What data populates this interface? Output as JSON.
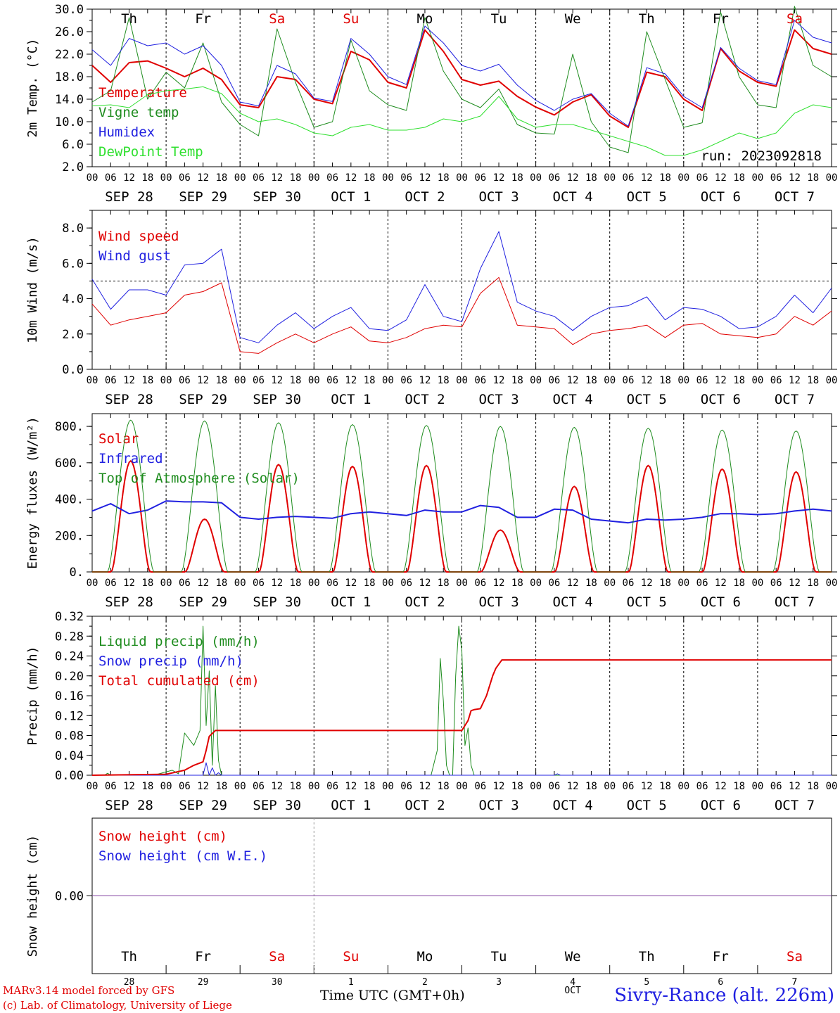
{
  "footer": {
    "credit_line1": "MARv3.14 model forced by GFS",
    "credit_line2": "(c) Lab. of Climatology, University of Liege",
    "x_title": "Time UTC (GMT+0h)",
    "station": "Sivry-Rance (alt. 226m)",
    "month_label": "OCT"
  },
  "colors": {
    "red": "#e00000",
    "green": "#1e8c1e",
    "blue": "#2020e0",
    "light_green": "#30e030",
    "purple": "#8040a0",
    "axis": "#000000"
  },
  "days": [
    {
      "abbr": "Th",
      "weekend": false,
      "date_label": "SEP 28",
      "num": "28"
    },
    {
      "abbr": "Fr",
      "weekend": false,
      "date_label": "SEP 29",
      "num": "29"
    },
    {
      "abbr": "Sa",
      "weekend": true,
      "date_label": "SEP 30",
      "num": "30"
    },
    {
      "abbr": "Su",
      "weekend": true,
      "date_label": "OCT  1",
      "num": "1"
    },
    {
      "abbr": "Mo",
      "weekend": false,
      "date_label": "OCT  2",
      "num": "2"
    },
    {
      "abbr": "Tu",
      "weekend": false,
      "date_label": "OCT  3",
      "num": "3"
    },
    {
      "abbr": "We",
      "weekend": false,
      "date_label": "OCT  4",
      "num": "4"
    },
    {
      "abbr": "Th",
      "weekend": false,
      "date_label": "OCT  5",
      "num": "5"
    },
    {
      "abbr": "Fr",
      "weekend": false,
      "date_label": "OCT  6",
      "num": "6"
    },
    {
      "abbr": "Sa",
      "weekend": true,
      "date_label": "OCT  7",
      "num": "7"
    }
  ],
  "hour_ticks": [
    "00",
    "06",
    "12",
    "18"
  ],
  "chart_data": [
    {
      "type": "line",
      "ylabel": "2m Temp. (°C)",
      "ylim": [
        2,
        30
      ],
      "yticks": [
        "2.0",
        "6.0",
        "10.0",
        "14.0",
        "18.0",
        "22.0",
        "26.0",
        "30.0"
      ],
      "ytick_values": [
        2,
        6,
        10,
        14,
        18,
        22,
        26,
        30
      ],
      "annotation": "run: 2023092818",
      "x_hours": [
        0,
        6,
        12,
        18,
        24,
        30,
        36,
        42,
        48,
        54,
        60,
        66,
        72,
        78,
        84,
        90,
        96,
        102,
        108,
        114,
        120,
        126,
        132,
        138,
        144,
        150,
        156,
        162,
        168,
        174,
        180,
        186,
        192,
        198,
        204,
        210,
        216,
        222,
        228,
        234,
        240
      ],
      "series": [
        {
          "name": "Temperature",
          "color": "red",
          "width": 2,
          "values": [
            20.0,
            17.0,
            20.5,
            20.8,
            19.5,
            18.0,
            19.5,
            17.5,
            13.0,
            12.5,
            18.0,
            17.5,
            14.0,
            13.2,
            22.5,
            21.0,
            17.0,
            16.0,
            26.3,
            22.5,
            17.5,
            16.5,
            17.2,
            14.5,
            12.6,
            11.2,
            13.5,
            14.8,
            11.0,
            9.0,
            18.8,
            18.0,
            14.0,
            12.0,
            23.0,
            19.0,
            17.0,
            16.3,
            26.3,
            23.0,
            22.0
          ]
        },
        {
          "name": "Vigne temp",
          "color": "green",
          "width": 1,
          "values": [
            13.5,
            15.5,
            28.5,
            14.0,
            18.8,
            16.0,
            24.0,
            13.5,
            9.5,
            7.5,
            26.5,
            17.0,
            9.0,
            10.0,
            24.5,
            15.5,
            13.0,
            12.0,
            28.5,
            19.0,
            14.0,
            12.5,
            15.8,
            9.5,
            8.0,
            7.8,
            22.0,
            10.0,
            5.5,
            4.5,
            26.0,
            17.5,
            9.0,
            9.8,
            29.5,
            18.0,
            13.0,
            12.5,
            30.5,
            20.0,
            18.0
          ]
        },
        {
          "name": "Humidex",
          "color": "blue",
          "width": 1,
          "values": [
            22.8,
            20.0,
            24.8,
            23.5,
            24.0,
            22.0,
            23.5,
            20.0,
            13.5,
            12.8,
            20.0,
            18.5,
            14.2,
            13.6,
            24.8,
            22.0,
            18.0,
            16.6,
            27.0,
            24.0,
            20.0,
            19.0,
            20.2,
            16.5,
            13.8,
            12.0,
            14.0,
            15.0,
            11.5,
            9.2,
            19.6,
            18.5,
            14.5,
            12.5,
            23.2,
            19.5,
            17.3,
            16.6,
            28.0,
            25.0,
            24.0
          ]
        },
        {
          "name": "DewPoint Temp",
          "color": "light_green",
          "width": 1,
          "values": [
            12.8,
            13.0,
            12.5,
            14.8,
            15.5,
            15.8,
            16.2,
            15.0,
            11.5,
            10.0,
            10.5,
            9.5,
            8.0,
            7.5,
            9.0,
            9.5,
            8.5,
            8.5,
            9.0,
            10.5,
            10.0,
            11.0,
            14.5,
            10.5,
            9.0,
            9.5,
            9.5,
            8.5,
            7.5,
            6.5,
            5.5,
            4.0,
            4.0,
            5.0,
            6.5,
            8.0,
            7.0,
            8.0,
            11.5,
            13.0,
            12.5
          ]
        }
      ]
    },
    {
      "type": "line",
      "ylabel": "10m Wind (m/s)",
      "ylim": [
        0,
        9
      ],
      "yticks": [
        "0.0",
        "2.0",
        "4.0",
        "6.0",
        "8.0"
      ],
      "ytick_values": [
        0,
        2,
        4,
        6,
        8
      ],
      "reference_line": 5.0,
      "x_hours": [
        0,
        6,
        12,
        18,
        24,
        30,
        36,
        42,
        48,
        54,
        60,
        66,
        72,
        78,
        84,
        90,
        96,
        102,
        108,
        114,
        120,
        126,
        132,
        138,
        144,
        150,
        156,
        162,
        168,
        174,
        180,
        186,
        192,
        198,
        204,
        210,
        216,
        222,
        228,
        234,
        240
      ],
      "series": [
        {
          "name": "Wind speed",
          "color": "red",
          "width": 1,
          "values": [
            3.7,
            2.5,
            2.8,
            3.0,
            3.2,
            4.2,
            4.4,
            4.9,
            1.0,
            0.9,
            1.5,
            2.0,
            1.5,
            2.0,
            2.4,
            1.6,
            1.5,
            1.8,
            2.3,
            2.5,
            2.4,
            4.3,
            5.2,
            2.5,
            2.4,
            2.3,
            1.4,
            2.0,
            2.2,
            2.3,
            2.5,
            1.8,
            2.5,
            2.6,
            2.0,
            1.9,
            1.8,
            2.0,
            3.0,
            2.5,
            3.3
          ]
        },
        {
          "name": "Wind gust",
          "color": "blue",
          "width": 1,
          "values": [
            5.1,
            3.4,
            4.5,
            4.5,
            4.2,
            5.9,
            6.0,
            6.8,
            1.8,
            1.5,
            2.5,
            3.2,
            2.3,
            3.0,
            3.5,
            2.3,
            2.2,
            2.8,
            4.8,
            3.0,
            2.7,
            5.7,
            7.8,
            3.8,
            3.3,
            3.0,
            2.2,
            3.0,
            3.5,
            3.6,
            4.1,
            2.8,
            3.5,
            3.4,
            3.0,
            2.3,
            2.4,
            3.0,
            4.2,
            3.2,
            4.6
          ]
        }
      ]
    },
    {
      "type": "line",
      "ylabel": "Energy fluxes (W/m²)",
      "ylim": [
        0,
        870
      ],
      "yticks": [
        "0.",
        "200.",
        "400.",
        "600.",
        "800."
      ],
      "ytick_values": [
        0,
        200,
        400,
        600,
        800
      ],
      "series": [
        {
          "name": "Solar",
          "color": "red",
          "width": 2,
          "peaks": [
            610,
            290,
            590,
            580,
            585,
            230,
            470,
            585,
            565,
            550
          ]
        },
        {
          "name": "Infrared",
          "color": "blue",
          "width": 2,
          "x_hours": [
            0,
            6,
            12,
            18,
            24,
            30,
            36,
            42,
            48,
            54,
            60,
            66,
            72,
            78,
            84,
            90,
            96,
            102,
            108,
            114,
            120,
            126,
            132,
            138,
            144,
            150,
            156,
            162,
            168,
            174,
            180,
            186,
            192,
            198,
            204,
            210,
            216,
            222,
            228,
            234,
            240
          ],
          "values": [
            335,
            375,
            320,
            340,
            390,
            385,
            385,
            380,
            300,
            290,
            300,
            305,
            300,
            295,
            320,
            330,
            320,
            310,
            340,
            330,
            330,
            365,
            355,
            300,
            300,
            345,
            340,
            290,
            280,
            270,
            290,
            285,
            290,
            300,
            320,
            320,
            315,
            320,
            335,
            345,
            335
          ]
        },
        {
          "name": "Top of Atmosphere (Solar)",
          "color": "green",
          "width": 1,
          "peaks": [
            835,
            830,
            820,
            810,
            805,
            800,
            795,
            790,
            780,
            775
          ]
        }
      ]
    },
    {
      "type": "line",
      "ylabel": "Precip (mm/h)",
      "ylim": [
        0,
        0.32
      ],
      "yticks": [
        "0.00",
        "0.04",
        "0.08",
        "0.12",
        "0.16",
        "0.20",
        "0.24",
        "0.28",
        "0.32"
      ],
      "ytick_values": [
        0,
        0.04,
        0.08,
        0.12,
        0.16,
        0.2,
        0.24,
        0.28,
        0.32
      ],
      "series": [
        {
          "name": "Liquid precip (mm/h)",
          "color": "green",
          "width": 1,
          "x_hours": [
            0,
            4,
            5,
            6,
            20,
            26,
            28,
            30,
            33,
            35,
            36,
            37,
            38,
            39,
            40,
            41,
            42,
            44,
            60,
            110,
            112,
            113,
            114,
            115,
            116,
            117,
            118,
            119,
            120,
            121,
            122,
            123,
            124,
            125,
            126,
            128,
            130,
            240
          ],
          "values": [
            0,
            0,
            0.004,
            0,
            0,
            0.01,
            0.003,
            0.085,
            0.06,
            0.09,
            0.3,
            0.1,
            0.21,
            0.02,
            0.18,
            0.03,
            0,
            0,
            0,
            0,
            0.05,
            0.235,
            0.15,
            0.02,
            0,
            0,
            0.2,
            0.3,
            0.25,
            0.06,
            0.095,
            0.02,
            0,
            0,
            0,
            0,
            0,
            0
          ]
        },
        {
          "name": "Snow precip (mm/h)",
          "color": "blue",
          "width": 1,
          "x_hours": [
            0,
            36,
            37,
            38,
            39,
            40,
            41,
            42,
            150,
            151,
            152,
            240
          ],
          "values": [
            0,
            0,
            0.025,
            0,
            0.015,
            0,
            0.005,
            0,
            0,
            0.003,
            0,
            0
          ]
        },
        {
          "name": "Total cumulated (cm)",
          "color": "red",
          "width": 2,
          "x_hours": [
            0,
            24,
            30,
            33,
            36,
            37,
            38,
            40,
            42,
            60,
            90,
            120,
            122,
            123,
            124,
            126,
            128,
            130,
            131,
            133,
            150,
            180,
            210,
            240
          ],
          "values": [
            0.0,
            0.002,
            0.01,
            0.02,
            0.027,
            0.05,
            0.078,
            0.09,
            0.09,
            0.09,
            0.09,
            0.09,
            0.11,
            0.13,
            0.132,
            0.134,
            0.16,
            0.2,
            0.215,
            0.232,
            0.232,
            0.232,
            0.232,
            0.232
          ]
        }
      ]
    },
    {
      "type": "line",
      "ylabel": "Snow height (cm)",
      "ylim": [
        -1,
        1
      ],
      "yticks": [
        "0.00"
      ],
      "ytick_values": [
        0
      ],
      "series": [
        {
          "name": "Snow height (cm)",
          "color": "red",
          "width": 1,
          "constant": 0
        },
        {
          "name": "Snow height (cm W.E.)",
          "color": "blue",
          "width": 1,
          "constant": 0
        }
      ]
    }
  ]
}
